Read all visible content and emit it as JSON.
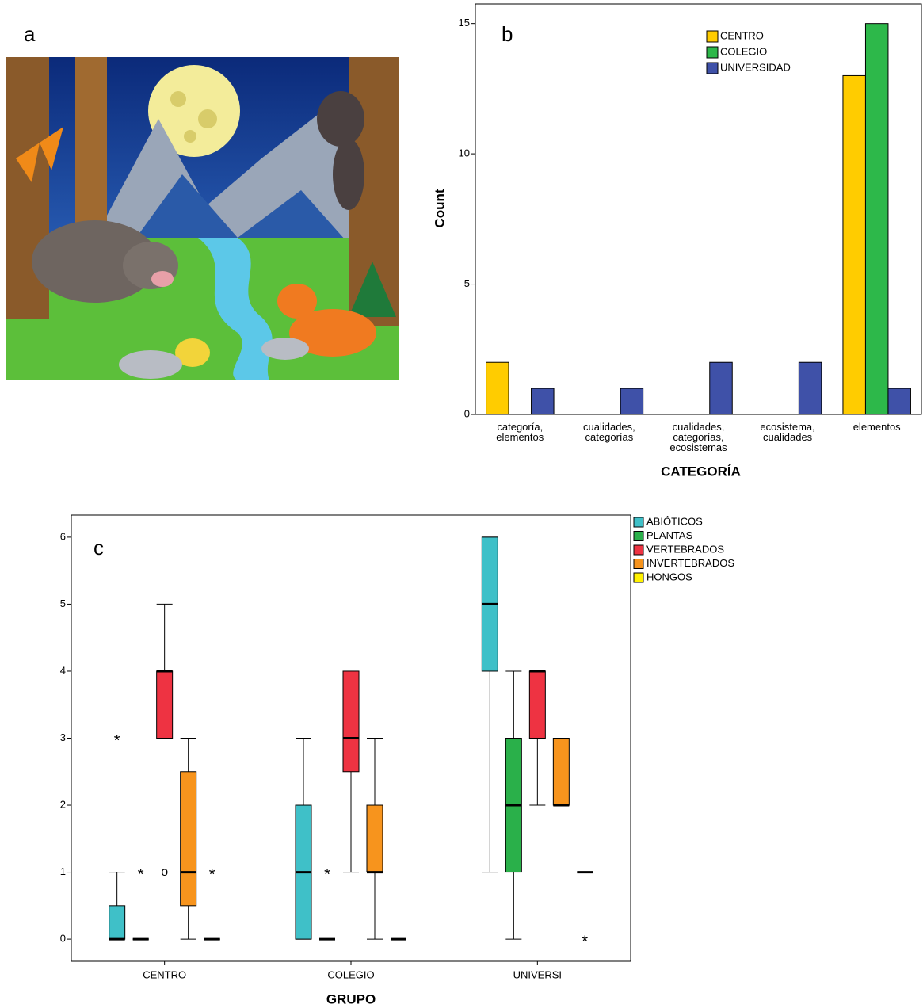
{
  "panel_labels": [
    "a",
    "b",
    "c"
  ],
  "chart_data": [
    {
      "type": "bar",
      "x_label": "CATEGORÍA",
      "y_label": "Count",
      "categories": [
        "categoría, elementos",
        "cualidades, categorías",
        "cualidades, categorías, ecosistemas",
        "ecosistema, cualidades",
        "elementos"
      ],
      "series": [
        {
          "name": "CENTRO",
          "color": "#ffcc00",
          "values": [
            2,
            0,
            0,
            0,
            13
          ]
        },
        {
          "name": "COLEGIO",
          "color": "#2db84a",
          "values": [
            0,
            0,
            0,
            0,
            15
          ]
        },
        {
          "name": "UNIVERSIDAD",
          "color": "#3f51a8",
          "values": [
            1,
            1,
            2,
            2,
            1
          ]
        }
      ],
      "ylim": [
        0,
        15.75
      ],
      "yticks": [
        0,
        5,
        10,
        15
      ]
    },
    {
      "type": "box",
      "x_label": "GRUPO",
      "categories": [
        "CENTRO",
        "COLEGIO",
        "UNIVERSI"
      ],
      "series": [
        {
          "name": "ABIÓTICOS",
          "color": "#3fc0c8",
          "min": [
            0,
            0,
            1
          ],
          "q1": [
            0,
            0,
            4
          ],
          "median": [
            0,
            1,
            5
          ],
          "q3": [
            0.5,
            2,
            6
          ],
          "max": [
            1,
            3,
            6
          ],
          "outliers": [
            [
              {
                "value": 3,
                "symbol": "*"
              }
            ],
            [],
            []
          ]
        },
        {
          "name": "PLANTAS",
          "color": "#2ab04a",
          "min": [
            0,
            0,
            0
          ],
          "q1": [
            0,
            0,
            1
          ],
          "median": [
            0,
            0,
            2
          ],
          "q3": [
            0,
            0,
            3
          ],
          "max": [
            0,
            0,
            4
          ],
          "outliers": [
            [
              {
                "value": 1,
                "symbol": "*"
              }
            ],
            [
              {
                "value": 1,
                "symbol": "*"
              }
            ],
            []
          ]
        },
        {
          "name": "VERTEBRADOS",
          "color": "#ee3342",
          "min": [
            3,
            1,
            2
          ],
          "q1": [
            3,
            2.5,
            3
          ],
          "median": [
            4,
            3,
            4
          ],
          "q3": [
            4,
            4,
            4
          ],
          "max": [
            5,
            4,
            4
          ],
          "outliers": [
            [
              {
                "value": 1,
                "symbol": "o"
              }
            ],
            [],
            []
          ]
        },
        {
          "name": "INVERTEBRADOS",
          "color": "#f7941d",
          "min": [
            0,
            0,
            2
          ],
          "q1": [
            0.5,
            1,
            2
          ],
          "median": [
            1,
            1,
            2
          ],
          "q3": [
            2.5,
            2,
            3
          ],
          "max": [
            3,
            3,
            3
          ],
          "outliers": [
            [],
            [],
            []
          ]
        },
        {
          "name": "HONGOS",
          "color": "#fff200",
          "min": [
            0,
            0,
            1
          ],
          "q1": [
            0,
            0,
            1
          ],
          "median": [
            0,
            0,
            1
          ],
          "q3": [
            0,
            0,
            1
          ],
          "max": [
            0,
            0,
            1
          ],
          "outliers": [
            [
              {
                "value": 1,
                "symbol": "*"
              }
            ],
            [],
            [
              {
                "value": 0,
                "symbol": "*"
              }
            ]
          ]
        }
      ],
      "ylim": [
        -0.33,
        6.33
      ],
      "yticks": [
        0,
        1,
        2,
        3,
        4,
        5,
        6
      ]
    }
  ]
}
